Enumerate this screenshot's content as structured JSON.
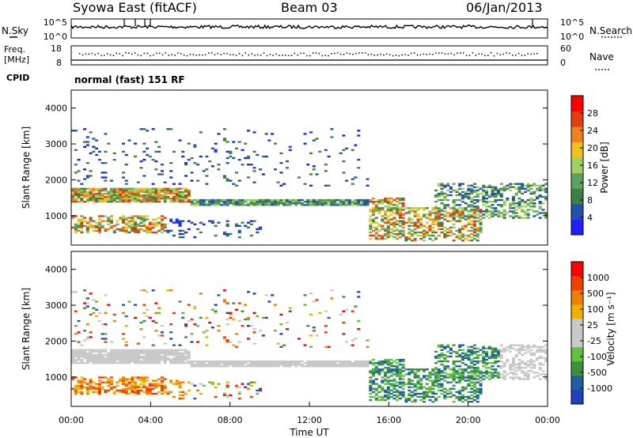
{
  "header": {
    "station": "Syowa East (fitACF)",
    "beam": "Beam 03",
    "date": "06/Jan/2013"
  },
  "chart_data": [
    {
      "type": "line",
      "panel": "noise",
      "left_label": "N.Sky",
      "right_label": "N.Search",
      "left_ticks": [
        "10^5",
        "10^0"
      ],
      "right_ticks": [
        "10^5",
        "10^0"
      ]
    },
    {
      "type": "scatter",
      "panel": "frequency",
      "left_label_line1": "Freq.",
      "left_label_line2": "[MHz]",
      "left_ticks": [
        "18",
        "8"
      ],
      "right_label": "Nave",
      "right_ticks": [
        "60",
        "0"
      ],
      "cpid_label": "CPID",
      "cpid_text": "normal (fast) 151 RF"
    },
    {
      "type": "heatmap",
      "panel": "power",
      "ylabel": "Slant Range [km]",
      "xlabel": "",
      "yticks": [
        "4000",
        "3000",
        "2000",
        "1000"
      ],
      "ylim": [
        180,
        4500
      ],
      "colorbar_label": "Power [dB]",
      "colorbar_ticks": [
        "28",
        "24",
        "20",
        "16",
        "12",
        "8",
        "4"
      ],
      "colors": [
        "#2020ff",
        "#2050b0",
        "#3f7f3f",
        "#5fa05f",
        "#a0d060",
        "#f0c020",
        "#f08020",
        "#e04010",
        "#ff0000"
      ]
    },
    {
      "type": "heatmap",
      "panel": "velocity",
      "ylabel": "Slant Range [km]",
      "xlabel": "Time UT",
      "yticks": [
        "4000",
        "3000",
        "2000",
        "1000"
      ],
      "xticks": [
        "00:00",
        "04:00",
        "08:00",
        "12:00",
        "16:00",
        "20:00",
        "00:00"
      ],
      "ylim": [
        180,
        4500
      ],
      "colorbar_label": "Velocity [m s⁻¹]",
      "colorbar_ticks": [
        "1000",
        "500",
        "100",
        "25",
        "-25",
        "-100",
        "-500",
        "-1000"
      ],
      "colors": [
        "#2040c0",
        "#2060a0",
        "#3f8f3f",
        "#60c040",
        "#c8c8c8",
        "#c8c8c8",
        "#f0b000",
        "#f08000",
        "#f04000",
        "#ff0000"
      ]
    }
  ]
}
